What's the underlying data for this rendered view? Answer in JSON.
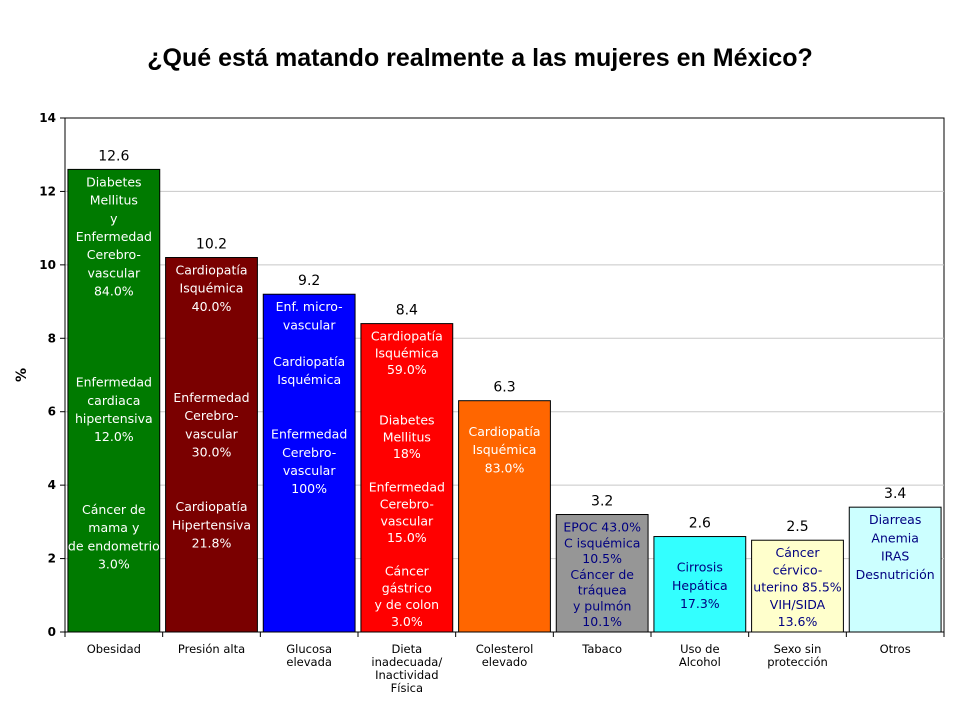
{
  "chart_data": {
    "type": "bar",
    "title": "¿Qué está matando realmente a las mujeres en México?",
    "ylabel": "%",
    "xlabel": "",
    "ylim": [
      0,
      14
    ],
    "yticks": [
      0,
      2,
      4,
      6,
      8,
      10,
      12,
      14
    ],
    "grid": true,
    "categories": [
      [
        "Obesidad"
      ],
      [
        "Presión alta"
      ],
      [
        "Glucosa",
        "elevada"
      ],
      [
        "Dieta",
        "inadecuada/",
        "Inactividad",
        "Física"
      ],
      [
        "Colesterol",
        "elevado"
      ],
      [
        "Tabaco"
      ],
      [
        "Uso de",
        "Alcohol"
      ],
      [
        "Sexo sin",
        "protección"
      ],
      [
        "Otros"
      ]
    ],
    "values": [
      12.6,
      10.2,
      9.2,
      8.4,
      6.3,
      3.2,
      2.6,
      2.5,
      3.4
    ],
    "value_labels": [
      "12.6",
      "10.2",
      "9.2",
      "8.4",
      "6.3",
      "3.2",
      "2.6",
      "2.5",
      "3.4"
    ],
    "colors": [
      "#007a00",
      "#7a0000",
      "#0000ff",
      "#ff0000",
      "#ff6600",
      "#969696",
      "#33ffff",
      "#ffffcc",
      "#ccffff"
    ],
    "text_colors": [
      "#ffffff",
      "#ffffff",
      "#ffffff",
      "#ffffff",
      "#ffffff",
      "#000080",
      "#000080",
      "#000080",
      "#000080"
    ],
    "annotations": [
      [
        "Diabetes",
        "Mellitus",
        "y",
        "Enfermedad",
        "Cerebro-",
        "vascular",
        "84.0%",
        "",
        "",
        "",
        "",
        "Enfermedad",
        "cardiaca",
        "hipertensiva",
        "12.0%",
        "",
        "",
        "",
        "Cáncer de",
        "mama y",
        "de endometrio",
        "3.0%"
      ],
      [
        "Cardiopatía",
        "Isquémica",
        "40.0%",
        "",
        "",
        "",
        "",
        "Enfermedad",
        "Cerebro-",
        "vascular",
        "30.0%",
        "",
        "",
        "Cardiopatía",
        "Hipertensiva",
        "21.8%"
      ],
      [
        "Enf. micro-",
        "vascular",
        "",
        "Cardiopatía",
        "Isquémica",
        "",
        "",
        "Enfermedad",
        "Cerebro-",
        "vascular",
        "100%"
      ],
      [
        "Cardiopatía",
        "Isquémica",
        "59.0%",
        "",
        "",
        "Diabetes",
        "Mellitus",
        "18%",
        "",
        "Enfermedad",
        "Cerebro-",
        "vascular",
        "15.0%",
        "",
        "Cáncer",
        "gástrico",
        "y de colon",
        "3.0%"
      ],
      [
        "",
        "Cardiopatía",
        "Isquémica",
        "83.0%"
      ],
      [
        "EPOC 43.0%",
        "C isquémica",
        "10.5%",
        "Cáncer de",
        "tráquea",
        "y pulmón",
        "10.1%"
      ],
      [
        "",
        "Cirrosis",
        "Hepática",
        "17.3%"
      ],
      [
        "Cáncer",
        "cérvico-",
        "uterino 85.5%",
        "VIH/SIDA",
        "13.6%"
      ],
      [
        "Diarreas",
        "Anemia",
        "IRAS",
        "Desnutrición"
      ]
    ]
  }
}
